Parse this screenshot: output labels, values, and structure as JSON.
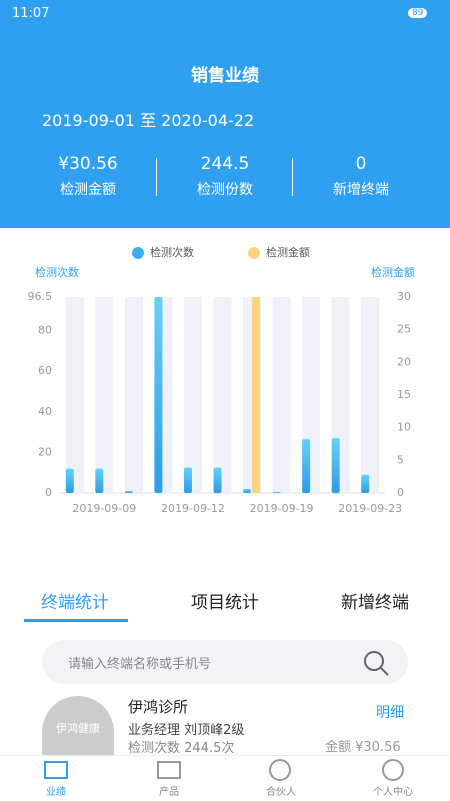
{
  "status_bar": {
    "time": "11:07",
    "battery": "89"
  },
  "header": {
    "title": "销售业绩",
    "date_range": "2019-09-01 至 2020-04-22",
    "stats": [
      {
        "value": "¥30.56",
        "label": "检测金额"
      },
      {
        "value": "244.5",
        "label": "检测份数"
      },
      {
        "value": "0",
        "label": "新增终端"
      }
    ]
  },
  "chart_data": {
    "type": "bar",
    "y_label": "检测次数",
    "y2_label": "检测金额",
    "categories": [
      null,
      "2019-09-09",
      null,
      null,
      "2019-09-12",
      null,
      null,
      "2019-09-19",
      null,
      null,
      "2019-09-23"
    ],
    "series": [
      {
        "name": "检测次数",
        "color": "#3aaef0",
        "values": [
          12,
          12,
          1,
          96.5,
          12.5,
          12.5,
          2,
          0.5,
          26.5,
          27,
          9
        ]
      },
      {
        "name": "检测金额",
        "color": "#fbd27e",
        "axis": "y2",
        "values": [
          0,
          0,
          0,
          0,
          0,
          0,
          30,
          0,
          0,
          0,
          0
        ]
      }
    ],
    "ylim": [
      0,
      96.5
    ],
    "yticks": [
      0,
      20,
      40,
      60,
      80,
      96.5
    ],
    "y2lim": [
      0,
      30
    ],
    "y2ticks": [
      0,
      5,
      10,
      15,
      20,
      25,
      30
    ],
    "grid": false
  },
  "tabs": [
    "终端统计",
    "项目统计",
    "新增终端"
  ],
  "search": {
    "placeholder": "请输入终端名称或手机号"
  },
  "list": [
    {
      "logo": "伊鸿健康",
      "name": "伊鸿诊所",
      "manager": "业务经理 刘顶峰2级",
      "count": "检测次数 244.5次",
      "detail": "明细",
      "amount": "金额 ¥30.56"
    }
  ],
  "nav": [
    "业绩",
    "产品",
    "合伙人",
    "个人中心"
  ]
}
